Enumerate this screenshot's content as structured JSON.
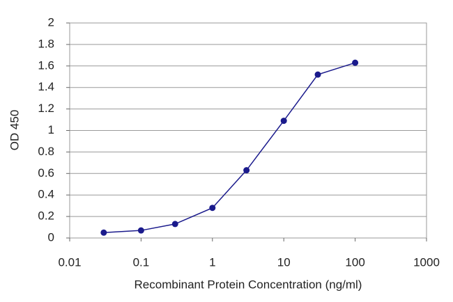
{
  "chart_data": {
    "type": "line",
    "xlabel": "Recombinant Protein Concentration (ng/ml)",
    "ylabel": "OD 450",
    "xscale": "log",
    "x": [
      0.03,
      0.1,
      0.3,
      1,
      3,
      10,
      30,
      100
    ],
    "series": [
      {
        "color": "#1a1a8c",
        "values": [
          0.05,
          0.07,
          0.13,
          0.28,
          0.63,
          1.09,
          1.52,
          1.63
        ]
      }
    ],
    "xlim": [
      0.01,
      1000
    ],
    "xticks": [
      0.01,
      0.1,
      1,
      10,
      100,
      1000
    ],
    "ylim": [
      0,
      2
    ],
    "yticks": [
      0,
      0.2,
      0.4,
      0.6,
      0.8,
      1,
      1.2,
      1.4,
      1.6,
      1.8,
      2
    ],
    "grid": true
  }
}
